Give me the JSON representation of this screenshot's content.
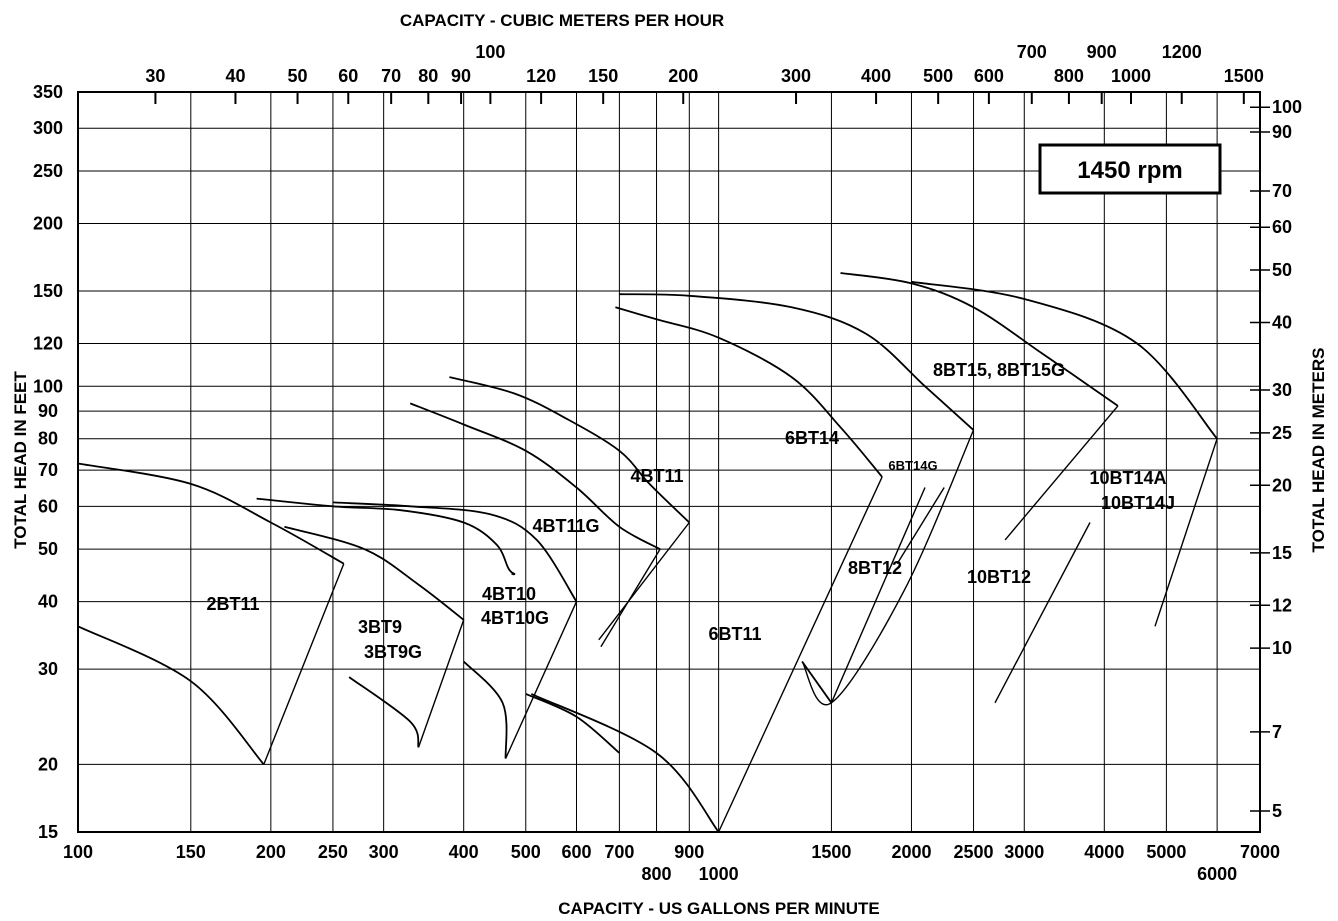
{
  "chart_data": {
    "type": "line",
    "title": "",
    "xlabel": "CAPACITY - US GALLONS PER MINUTE",
    "x2label": "CAPACITY - CUBIC METERS PER HOUR",
    "ylabel": "TOTAL HEAD IN FEET",
    "y2label": "TOTAL HEAD IN METERS",
    "x_scale": "log",
    "y_scale": "log",
    "xlim": [
      100,
      7000
    ],
    "ylim": [
      15,
      350
    ],
    "x_ticks": [
      100,
      150,
      200,
      250,
      300,
      400,
      500,
      600,
      700,
      800,
      900,
      1000,
      1500,
      2000,
      2500,
      3000,
      4000,
      5000,
      6000,
      7000
    ],
    "x_tick_labels": [
      "100",
      "150",
      "200",
      "250",
      "300",
      "400",
      "500",
      "600",
      "700",
      "800",
      "900",
      "1000",
      "1500",
      "2000",
      "2500",
      "3000",
      "4000",
      "5000",
      "6000",
      "7000"
    ],
    "x2_ticks": [
      30,
      40,
      50,
      60,
      70,
      80,
      90,
      100,
      120,
      150,
      200,
      300,
      400,
      500,
      600,
      700,
      800,
      900,
      1000,
      1200,
      1500
    ],
    "x2_tick_labels": [
      "30",
      "40",
      "50",
      "60",
      "70",
      "80",
      "90",
      "100",
      "120",
      "150",
      "200",
      "300",
      "400",
      "500",
      "600",
      "700",
      "800",
      "900",
      "1000",
      "1200",
      "1500"
    ],
    "y_ticks": [
      15,
      20,
      30,
      40,
      50,
      60,
      70,
      80,
      90,
      100,
      120,
      150,
      200,
      250,
      300,
      350
    ],
    "y_tick_labels": [
      "15",
      "20",
      "30",
      "40",
      "50",
      "60",
      "70",
      "80",
      "90",
      "100",
      "120",
      "150",
      "200",
      "250",
      "300",
      "350"
    ],
    "y2_ticks": [
      5,
      7,
      10,
      12,
      15,
      20,
      25,
      30,
      40,
      50,
      60,
      70,
      90,
      100
    ],
    "y2_tick_labels": [
      "5",
      "7",
      "10",
      "12",
      "15",
      "20",
      "25",
      "30",
      "40",
      "50",
      "60",
      "70",
      "90",
      "100"
    ],
    "grid": true,
    "annotation": "1450 rpm",
    "series": [
      {
        "name": "2BT11",
        "upper": [
          [
            100,
            72
          ],
          [
            150,
            66
          ],
          [
            200,
            56
          ],
          [
            260,
            47
          ]
        ],
        "lower": [
          [
            100,
            36
          ],
          [
            150,
            28.5
          ],
          [
            195,
            20
          ]
        ],
        "right": [
          [
            195,
            20
          ],
          [
            260,
            47
          ]
        ]
      },
      {
        "name": "3BT9 3BT9G",
        "upper": [
          [
            190,
            62
          ],
          [
            250,
            60
          ],
          [
            320,
            59
          ],
          [
            400,
            56
          ],
          [
            450,
            51
          ],
          [
            470,
            46
          ],
          [
            480,
            45
          ],
          [
            475,
            45
          ]
        ],
        "mid": [
          [
            210,
            55
          ],
          [
            280,
            50
          ],
          [
            340,
            43
          ],
          [
            400,
            37
          ]
        ],
        "lower": [
          [
            265,
            29
          ],
          [
            330,
            24
          ],
          [
            340,
            21.5
          ]
        ],
        "right": [
          [
            340,
            21.5
          ],
          [
            400,
            37
          ]
        ]
      },
      {
        "name": "4BT10 4BT10G",
        "upper": [
          [
            250,
            61
          ],
          [
            330,
            60
          ],
          [
            440,
            58
          ],
          [
            520,
            52
          ],
          [
            600,
            40
          ]
        ],
        "lower": [
          [
            400,
            31
          ],
          [
            460,
            26
          ],
          [
            465,
            20.5
          ]
        ],
        "right": [
          [
            465,
            20.5
          ],
          [
            600,
            40
          ]
        ]
      },
      {
        "name": "4BT11G",
        "upper": [
          [
            330,
            93
          ],
          [
            400,
            85
          ],
          [
            500,
            76
          ],
          [
            600,
            65
          ],
          [
            700,
            55
          ],
          [
            810,
            50
          ]
        ],
        "lower": [
          [
            500,
            27
          ],
          [
            600,
            24.5
          ],
          [
            700,
            21
          ]
        ],
        "right": [
          [
            655,
            33
          ],
          [
            810,
            50
          ]
        ]
      },
      {
        "name": "4BT11",
        "upper": [
          [
            380,
            104
          ],
          [
            480,
            97
          ],
          [
            580,
            87
          ],
          [
            700,
            76
          ],
          [
            780,
            66
          ],
          [
            900,
            56
          ]
        ],
        "right": [
          [
            650,
            34
          ],
          [
            900,
            56
          ]
        ]
      },
      {
        "name": "6BT11",
        "upper": [
          [
            690,
            140
          ],
          [
            800,
            133
          ],
          [
            1000,
            123
          ],
          [
            1300,
            104
          ],
          [
            1550,
            84
          ],
          [
            1800,
            68
          ]
        ],
        "lower": [
          [
            510,
            27
          ],
          [
            800,
            21
          ],
          [
            1000,
            15
          ]
        ],
        "right": [
          [
            1000,
            15
          ],
          [
            1800,
            68
          ]
        ]
      },
      {
        "name": "6BT14",
        "upper": [
          [
            700,
            148
          ],
          [
            900,
            147
          ],
          [
            1300,
            140
          ],
          [
            1700,
            125
          ],
          [
            2100,
            100
          ],
          [
            2500,
            83
          ]
        ],
        "right": [
          [
            1350,
            31
          ],
          [
            1500,
            26
          ],
          [
            1950,
            42
          ],
          [
            2500,
            83
          ]
        ]
      },
      {
        "name": "6BT14G",
        "right": [
          [
            1900,
            47
          ],
          [
            2250,
            65
          ]
        ]
      },
      {
        "name": "8BT12",
        "lower": [
          [
            1350,
            31
          ],
          [
            1500,
            26
          ]
        ],
        "right": [
          [
            1500,
            26
          ],
          [
            2100,
            65
          ]
        ]
      },
      {
        "name": "10BT12",
        "right": [
          [
            2700,
            26
          ],
          [
            3800,
            56
          ]
        ]
      },
      {
        "name": "8BT15, 8BT15G",
        "upper": [
          [
            1550,
            162
          ],
          [
            2000,
            155
          ],
          [
            2500,
            140
          ],
          [
            3200,
            115
          ],
          [
            4200,
            92
          ]
        ],
        "right": [
          [
            2800,
            52
          ],
          [
            4200,
            92
          ]
        ]
      },
      {
        "name": "10BT14A 10BT14J",
        "upper": [
          [
            2000,
            156
          ],
          [
            3000,
            145
          ],
          [
            4500,
            120
          ],
          [
            6000,
            80
          ]
        ],
        "right": [
          [
            4800,
            36
          ],
          [
            6000,
            80
          ]
        ]
      }
    ]
  },
  "labels": {
    "rpm": "1450 rpm",
    "p_2BT11": "2BT11",
    "p_3BT9": "3BT9",
    "p_3BT9G": "3BT9G",
    "p_4BT10": "4BT10",
    "p_4BT10G": "4BT10G",
    "p_4BT11G": "4BT11G",
    "p_4BT11": "4BT11",
    "p_6BT11": "6BT11",
    "p_6BT14": "6BT14",
    "p_6BT14G": "6BT14G",
    "p_8BT12": "8BT12",
    "p_10BT12": "10BT12",
    "p_8BT15": "8BT15, 8BT15G",
    "p_10BT14A": "10BT14A",
    "p_10BT14J": "10BT14J"
  }
}
